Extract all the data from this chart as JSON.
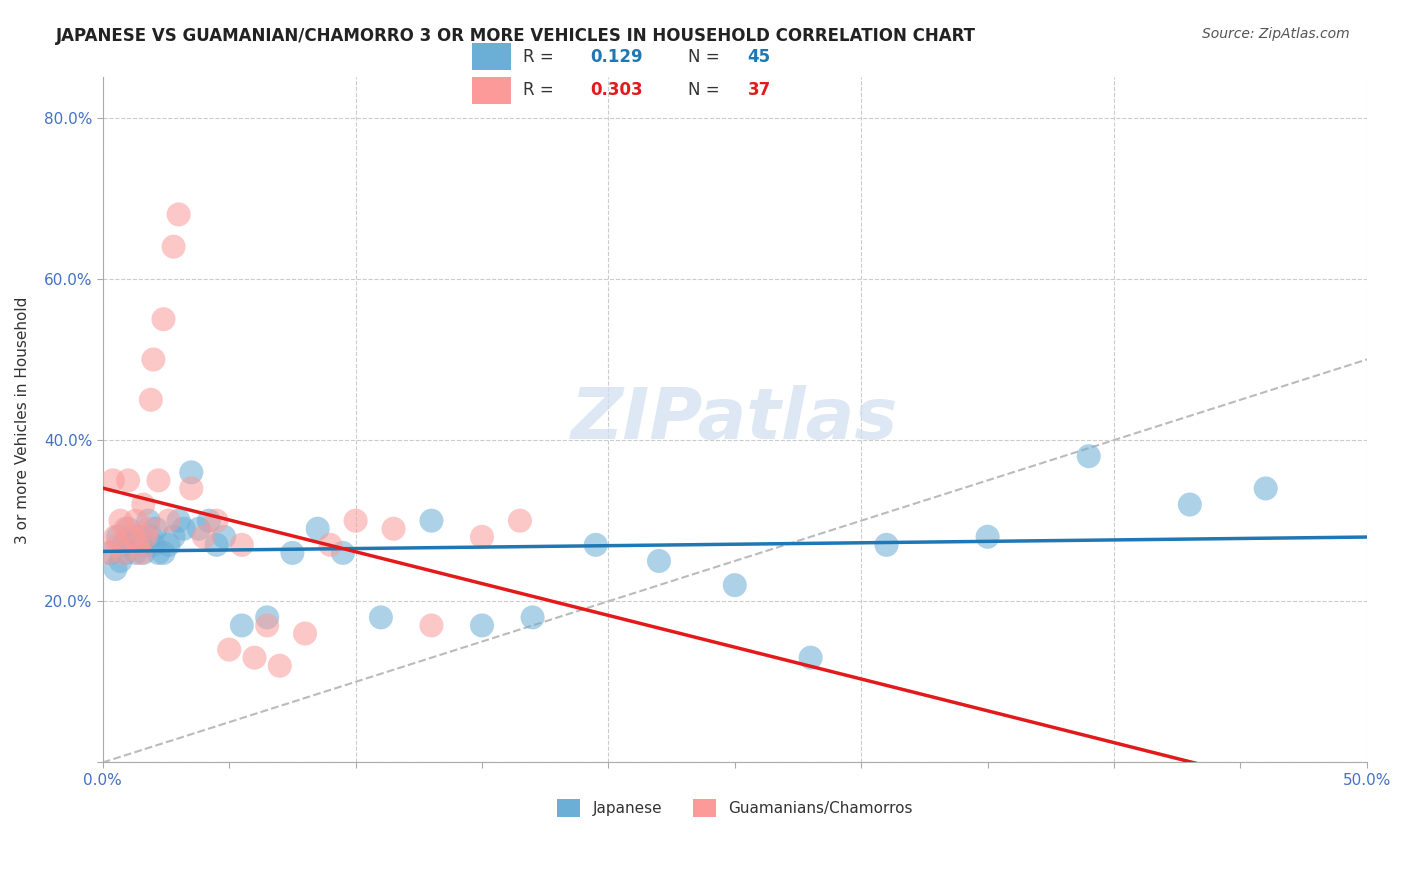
{
  "title": "JAPANESE VS GUAMANIAN/CHAMORRO 3 OR MORE VEHICLES IN HOUSEHOLD CORRELATION CHART",
  "source": "Source: ZipAtlas.com",
  "xlabel": "",
  "ylabel": "3 or more Vehicles in Household",
  "xlim": [
    0.0,
    0.5
  ],
  "ylim": [
    0.0,
    0.85
  ],
  "xticks": [
    0.0,
    0.05,
    0.1,
    0.15,
    0.2,
    0.25,
    0.3,
    0.35,
    0.4,
    0.45,
    0.5
  ],
  "xticklabels": [
    "0.0%",
    "",
    "",
    "",
    "",
    "",
    "",
    "",
    "",
    "",
    "50.0%"
  ],
  "yticks": [
    0.0,
    0.2,
    0.4,
    0.6,
    0.8
  ],
  "yticklabels": [
    "",
    "20.0%",
    "40.0%",
    "60.0%",
    "80.0%"
  ],
  "legend_r_japanese": "0.129",
  "legend_n_japanese": "45",
  "legend_r_guamanian": "0.303",
  "legend_n_guamanian": "37",
  "japanese_color": "#6baed6",
  "guamanian_color": "#fb9a99",
  "japanese_color_line": "#1f77b4",
  "guamanian_color_line": "#e31a1c",
  "watermark": "ZIPatlas",
  "japanese_x": [
    0.003,
    0.005,
    0.006,
    0.007,
    0.008,
    0.009,
    0.01,
    0.012,
    0.013,
    0.014,
    0.015,
    0.016,
    0.018,
    0.019,
    0.02,
    0.021,
    0.022,
    0.024,
    0.026,
    0.028,
    0.03,
    0.032,
    0.035,
    0.038,
    0.042,
    0.045,
    0.048,
    0.055,
    0.065,
    0.075,
    0.085,
    0.095,
    0.11,
    0.13,
    0.15,
    0.17,
    0.195,
    0.22,
    0.25,
    0.28,
    0.31,
    0.35,
    0.39,
    0.43,
    0.46
  ],
  "japanese_y": [
    0.26,
    0.24,
    0.28,
    0.25,
    0.27,
    0.26,
    0.29,
    0.27,
    0.26,
    0.28,
    0.27,
    0.26,
    0.3,
    0.28,
    0.27,
    0.29,
    0.26,
    0.26,
    0.27,
    0.28,
    0.3,
    0.29,
    0.36,
    0.29,
    0.3,
    0.27,
    0.28,
    0.17,
    0.18,
    0.26,
    0.29,
    0.26,
    0.18,
    0.3,
    0.17,
    0.18,
    0.27,
    0.25,
    0.22,
    0.13,
    0.27,
    0.28,
    0.38,
    0.32,
    0.34
  ],
  "guamanian_x": [
    0.002,
    0.004,
    0.005,
    0.006,
    0.007,
    0.008,
    0.009,
    0.01,
    0.012,
    0.013,
    0.014,
    0.015,
    0.016,
    0.017,
    0.018,
    0.019,
    0.02,
    0.022,
    0.024,
    0.026,
    0.028,
    0.03,
    0.035,
    0.04,
    0.045,
    0.05,
    0.055,
    0.06,
    0.065,
    0.07,
    0.08,
    0.09,
    0.1,
    0.115,
    0.13,
    0.15,
    0.165
  ],
  "guamanian_y": [
    0.26,
    0.35,
    0.28,
    0.27,
    0.3,
    0.26,
    0.29,
    0.35,
    0.28,
    0.3,
    0.27,
    0.26,
    0.32,
    0.28,
    0.29,
    0.45,
    0.5,
    0.35,
    0.55,
    0.3,
    0.64,
    0.68,
    0.34,
    0.28,
    0.3,
    0.14,
    0.27,
    0.13,
    0.17,
    0.12,
    0.16,
    0.27,
    0.3,
    0.29,
    0.17,
    0.28,
    0.3
  ]
}
